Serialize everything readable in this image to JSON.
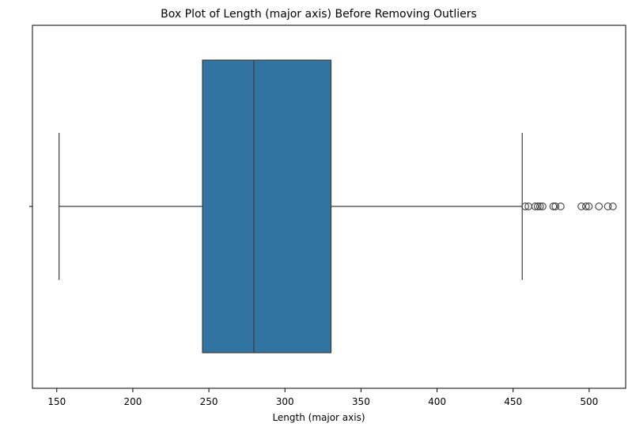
{
  "chart_data": {
    "type": "box",
    "title": "Box Plot of Length (major axis) Before Removing Outliers",
    "xlabel": "Length (major axis)",
    "ylabel": "",
    "xlim": [
      134,
      524
    ],
    "xticks": [
      150,
      200,
      250,
      300,
      350,
      400,
      450,
      500
    ],
    "orientation": "horizontal",
    "grid": false,
    "box": {
      "whisker_low": 151.5,
      "q1": 245.8,
      "median": 279.6,
      "q3": 330.3,
      "whisker_high": 456.0,
      "outliers": [
        458.0,
        460.1,
        464.5,
        466.2,
        467.7,
        469.4,
        476.4,
        477.8,
        481.3,
        494.9,
        497.9,
        499.8,
        506.4,
        512.3,
        515.6
      ],
      "color": "#3274a1"
    }
  }
}
